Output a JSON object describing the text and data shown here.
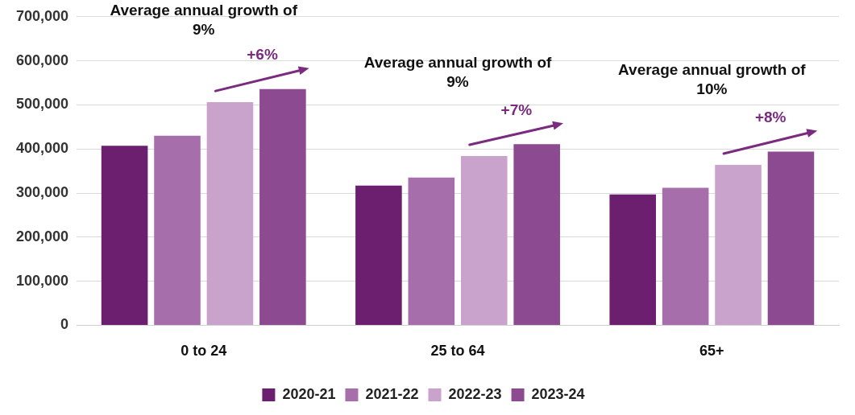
{
  "chart_data": {
    "type": "bar",
    "categories": [
      "0 to 24",
      "25 to 64",
      "65+"
    ],
    "series": [
      {
        "name": "2020-21",
        "color": "#6b1f6e",
        "values": [
          407000,
          317000,
          297000
        ]
      },
      {
        "name": "2021-22",
        "color": "#a66fab",
        "values": [
          430000,
          335000,
          312000
        ]
      },
      {
        "name": "2022-23",
        "color": "#c9a3cc",
        "values": [
          506000,
          384000,
          364000
        ]
      },
      {
        "name": "2023-24",
        "color": "#8c4a90",
        "values": [
          536000,
          411000,
          394000
        ]
      }
    ],
    "ylim": [
      0,
      700000
    ],
    "yticks": [
      {
        "value": 0,
        "label": "0"
      },
      {
        "value": 100000,
        "label": "100,000"
      },
      {
        "value": 200000,
        "label": "200,000"
      },
      {
        "value": 300000,
        "label": "300,000"
      },
      {
        "value": 400000,
        "label": "400,000"
      },
      {
        "value": 500000,
        "label": "500,000"
      },
      {
        "value": 600000,
        "label": "600,000"
      },
      {
        "value": 700000,
        "label": "700,000"
      }
    ],
    "grid": "y",
    "legend": "bottom",
    "annotations": [
      "Average annual growth of 9%",
      "+6%",
      "Average annual growth of 9%",
      "+7%",
      "Average annual growth of 10%",
      "+8%"
    ]
  }
}
